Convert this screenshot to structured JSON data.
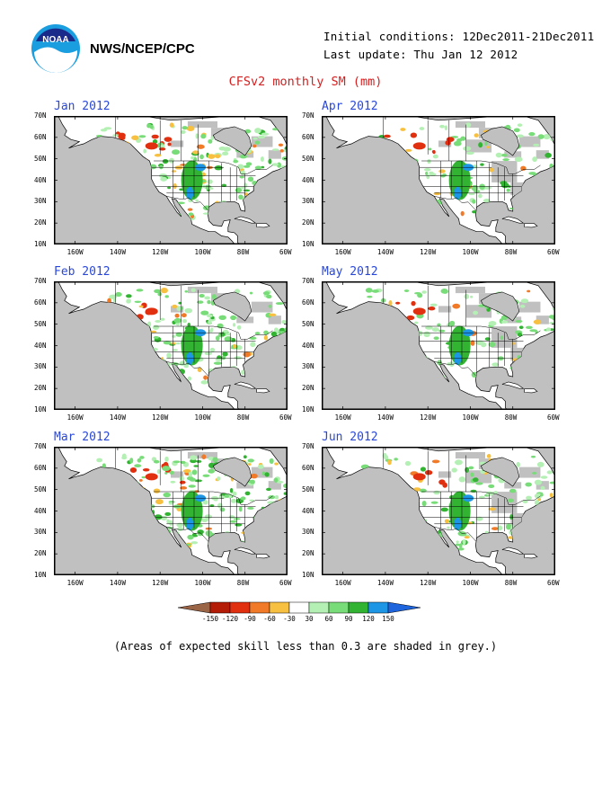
{
  "header": {
    "org": "NWS/NCEP/CPC",
    "initial_conditions": "Initial conditions: 12Dec2011-21Dec2011",
    "last_update": "Last update: Thu Jan 12 2012",
    "title": "CFSv2 monthly SM (mm)"
  },
  "colors": {
    "title": "#d42020",
    "panel_title": "#2a48d8",
    "ocean": "#c0c0c0",
    "land": "#ffffff",
    "low_skill": "#c0c0c0"
  },
  "panels": [
    {
      "label": "Jan 2012"
    },
    {
      "label": "Feb 2012"
    },
    {
      "label": "Mar 2012"
    },
    {
      "label": "Apr 2012"
    },
    {
      "label": "May 2012"
    },
    {
      "label": "Jun 2012"
    }
  ],
  "axes": {
    "lat_labels": [
      "70N",
      "60N",
      "50N",
      "40N",
      "30N",
      "20N",
      "10N"
    ],
    "lon_labels": [
      "160W",
      "140W",
      "120W",
      "100W",
      "80W",
      "60W"
    ]
  },
  "colorbar": {
    "levels": [
      "-150",
      "-120",
      "-90",
      "-60",
      "-30",
      "30",
      "60",
      "90",
      "120",
      "150"
    ],
    "colors": [
      "#9a6446",
      "#b41c08",
      "#e03010",
      "#f07a28",
      "#f8c040",
      "#ffffff",
      "#b4f0b4",
      "#78dc78",
      "#32b432",
      "#1e96e6",
      "#1e64dc"
    ]
  },
  "note": "(Areas of expected skill less than 0.3 are shaded in grey.)"
}
